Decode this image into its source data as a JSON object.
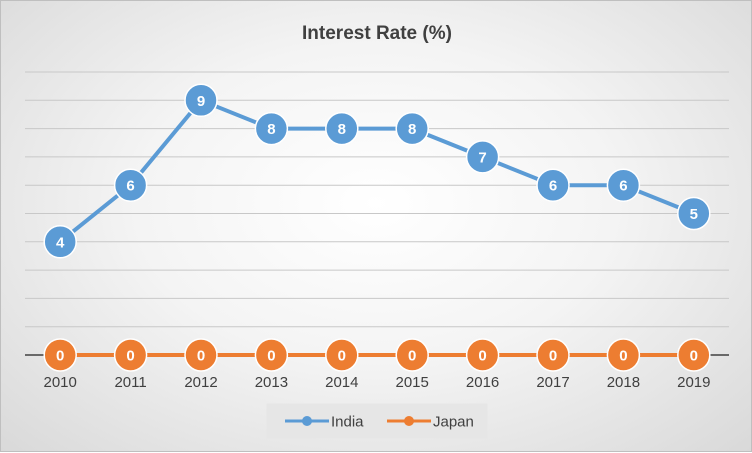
{
  "chart_data": {
    "type": "line",
    "title": "Interest Rate (%)",
    "categories": [
      "2010",
      "2011",
      "2012",
      "2013",
      "2014",
      "2015",
      "2016",
      "2017",
      "2018",
      "2019"
    ],
    "series": [
      {
        "name": "India",
        "values": [
          4,
          6,
          9,
          8,
          8,
          8,
          7,
          6,
          6,
          5
        ],
        "color": "#5b9bd5"
      },
      {
        "name": "Japan",
        "values": [
          0,
          0,
          0,
          0,
          0,
          0,
          0,
          0,
          0,
          0
        ],
        "color": "#ed7d31"
      }
    ],
    "ylim": [
      0,
      10
    ],
    "grid": true,
    "legend": "bottom",
    "data_labels": true
  }
}
